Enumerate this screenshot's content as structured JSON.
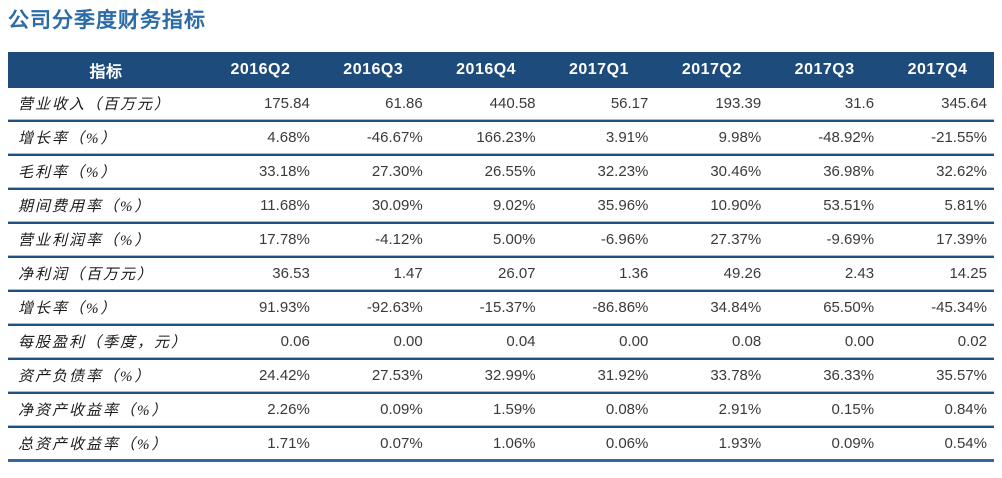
{
  "title": "公司分季度财务指标",
  "colors": {
    "title_text": "#2B6CA8",
    "header_bg": "#1C4B7C",
    "header_text": "#FFFFFF",
    "separator_light": "#9FBCD8",
    "separator_dark": "#1F5280",
    "bottom_border": "#34689F",
    "number_text": "#3A3A3A"
  },
  "table": {
    "columns": [
      "指标",
      "2016Q2",
      "2016Q3",
      "2016Q4",
      "2017Q1",
      "2017Q2",
      "2017Q3",
      "2017Q4"
    ],
    "rows": [
      {
        "label": "营业收入（百万元）",
        "values": [
          "175.84",
          "61.86",
          "440.58",
          "56.17",
          "193.39",
          "31.6",
          "345.64"
        ]
      },
      {
        "label": "增长率（%）",
        "values": [
          "4.68%",
          "-46.67%",
          "166.23%",
          "3.91%",
          "9.98%",
          "-48.92%",
          "-21.55%"
        ]
      },
      {
        "label": "毛利率（%）",
        "values": [
          "33.18%",
          "27.30%",
          "26.55%",
          "32.23%",
          "30.46%",
          "36.98%",
          "32.62%"
        ]
      },
      {
        "label": "期间费用率（%）",
        "values": [
          "11.68%",
          "30.09%",
          "9.02%",
          "35.96%",
          "10.90%",
          "53.51%",
          "5.81%"
        ]
      },
      {
        "label": "营业利润率（%）",
        "values": [
          "17.78%",
          "-4.12%",
          "5.00%",
          "-6.96%",
          "27.37%",
          "-9.69%",
          "17.39%"
        ]
      },
      {
        "label": "净利润（百万元）",
        "values": [
          "36.53",
          "1.47",
          "26.07",
          "1.36",
          "49.26",
          "2.43",
          "14.25"
        ]
      },
      {
        "label": "增长率（%）",
        "values": [
          "91.93%",
          "-92.63%",
          "-15.37%",
          "-86.86%",
          "34.84%",
          "65.50%",
          "-45.34%"
        ]
      },
      {
        "label": "每股盈利（季度，元）",
        "values": [
          "0.06",
          "0.00",
          "0.04",
          "0.00",
          "0.08",
          "0.00",
          "0.02"
        ]
      },
      {
        "label": "资产负债率（%）",
        "values": [
          "24.42%",
          "27.53%",
          "32.99%",
          "31.92%",
          "33.78%",
          "36.33%",
          "35.57%"
        ]
      },
      {
        "label": "净资产收益率（%）",
        "values": [
          "2.26%",
          "0.09%",
          "1.59%",
          "0.08%",
          "2.91%",
          "0.15%",
          "0.84%"
        ]
      },
      {
        "label": "总资产收益率（%）",
        "values": [
          "1.71%",
          "0.07%",
          "1.06%",
          "0.06%",
          "1.93%",
          "0.09%",
          "0.54%"
        ]
      }
    ]
  }
}
